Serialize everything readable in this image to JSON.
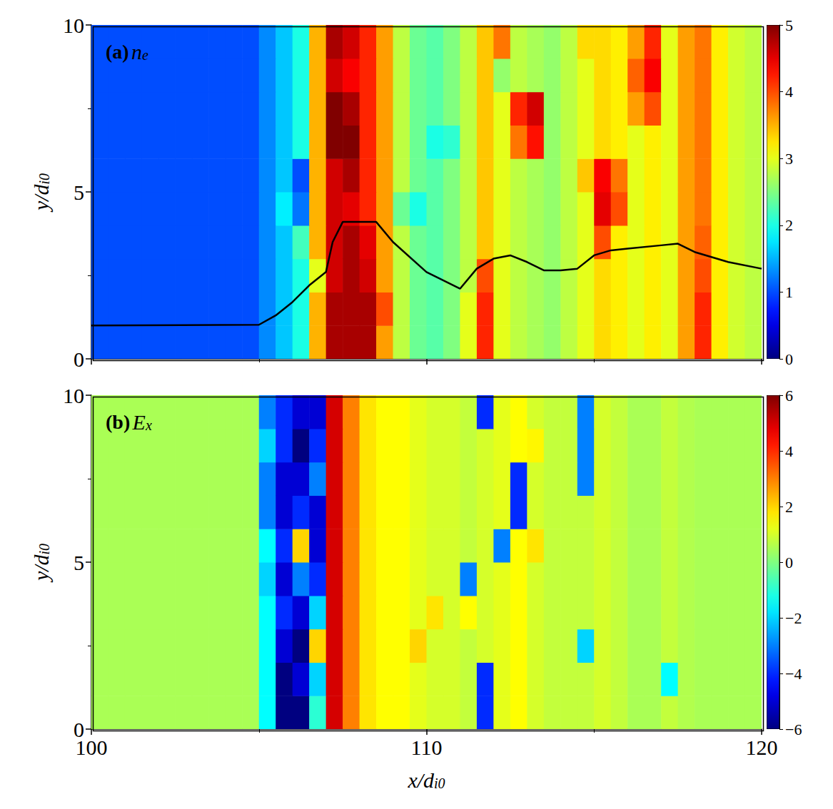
{
  "chart_data": [
    {
      "type": "heatmap",
      "panel": "(a)",
      "title": "ne",
      "ylabel": "y/di0",
      "xlim": [
        100,
        120
      ],
      "ylim": [
        0,
        10
      ],
      "xticks": [
        100,
        110,
        120
      ],
      "yticks": [
        0,
        5,
        10
      ],
      "tick_labels": "y",
      "cells": {
        "x_edges": [
          100,
          100.5,
          101,
          101.5,
          102,
          102.5,
          103,
          103.5,
          104,
          104.5,
          105,
          105.5,
          106,
          106.5,
          107,
          107.5,
          108,
          108.5,
          109,
          109.5,
          110,
          110.5,
          111,
          111.5,
          112,
          112.5,
          113,
          113.5,
          114,
          114.5,
          115,
          115.5,
          116,
          116.5,
          117,
          117.5,
          118,
          118.5,
          119,
          119.5,
          120
        ],
        "y_edges": [
          0,
          1,
          2,
          3,
          4,
          5,
          6,
          7,
          8,
          9,
          10
        ],
        "values": [
          [
            1,
            1,
            1,
            1,
            1,
            1,
            1,
            1,
            1,
            1,
            1.3,
            1.6,
            2.0,
            3.5,
            4.8,
            4.8,
            4.8,
            3.6,
            2.8,
            2.4,
            2.3,
            2.5,
            3.0,
            4.2,
            3.0,
            2.8,
            2.7,
            2.6,
            2.8,
            3.0,
            3.3,
            3.2,
            3.0,
            3.2,
            3.0,
            3.6,
            4.2,
            3.2,
            2.9,
            2.8
          ],
          [
            1,
            1,
            1,
            1,
            1,
            1,
            1,
            1,
            1,
            1,
            1.3,
            1.6,
            2.0,
            3.5,
            4.8,
            4.8,
            4.8,
            4.0,
            2.8,
            2.4,
            2.3,
            2.5,
            3.0,
            4.2,
            3.0,
            2.8,
            2.7,
            2.6,
            2.8,
            3.0,
            3.3,
            3.2,
            3.0,
            3.2,
            3.0,
            3.6,
            4.2,
            3.2,
            2.9,
            2.8
          ],
          [
            1,
            1,
            1,
            1,
            1,
            1,
            1,
            1,
            1,
            1,
            1.3,
            1.6,
            2.0,
            3.0,
            4.6,
            4.8,
            4.6,
            3.6,
            2.8,
            2.4,
            2.3,
            2.5,
            2.8,
            4.0,
            3.0,
            2.8,
            2.7,
            2.6,
            2.8,
            3.0,
            3.3,
            3.2,
            3.0,
            3.2,
            3.0,
            3.6,
            4.0,
            3.2,
            2.9,
            2.8
          ],
          [
            1,
            1,
            1,
            1,
            1,
            1,
            1,
            1,
            1,
            1,
            1.3,
            1.6,
            2.2,
            3.5,
            4.6,
            4.8,
            4.5,
            3.6,
            2.8,
            2.4,
            2.3,
            2.5,
            2.8,
            3.4,
            3.0,
            2.8,
            2.7,
            2.6,
            2.8,
            3.0,
            4.0,
            3.2,
            3.0,
            3.2,
            3.0,
            3.6,
            3.9,
            3.2,
            2.9,
            2.8
          ],
          [
            1,
            1,
            1,
            1,
            1,
            1,
            1,
            1,
            1,
            1,
            1.3,
            1.8,
            1.2,
            3.5,
            4.6,
            4.5,
            4.2,
            3.6,
            2.4,
            2.0,
            2.3,
            2.5,
            2.8,
            3.4,
            3.0,
            2.8,
            2.7,
            2.6,
            2.8,
            3.0,
            4.5,
            4.0,
            3.0,
            3.2,
            3.0,
            3.6,
            3.8,
            3.2,
            2.9,
            2.8
          ],
          [
            1,
            1,
            1,
            1,
            1,
            1,
            1,
            1,
            1,
            1,
            1.3,
            1.6,
            1.0,
            3.5,
            4.6,
            4.8,
            4.2,
            3.6,
            2.8,
            2.4,
            2.3,
            2.5,
            2.8,
            3.4,
            3.0,
            2.8,
            2.7,
            2.6,
            2.8,
            3.4,
            4.4,
            3.8,
            3.0,
            3.2,
            3.0,
            3.6,
            3.8,
            3.2,
            2.9,
            2.8
          ],
          [
            1,
            1,
            1,
            1,
            1,
            1,
            1,
            1,
            1,
            1,
            1.3,
            1.6,
            2.0,
            3.5,
            5.0,
            5.0,
            4.2,
            3.6,
            2.8,
            2.4,
            2.0,
            2.1,
            2.8,
            3.4,
            3.0,
            3.8,
            4.3,
            2.6,
            2.8,
            3.0,
            3.3,
            3.2,
            3.0,
            3.2,
            3.0,
            3.6,
            3.8,
            3.2,
            2.9,
            2.8
          ],
          [
            1,
            1,
            1,
            1,
            1,
            1,
            1,
            1,
            1,
            1,
            1.3,
            1.6,
            2.0,
            3.5,
            5.0,
            4.8,
            4.2,
            3.6,
            2.8,
            2.4,
            2.3,
            2.5,
            2.8,
            3.4,
            3.0,
            4.2,
            4.6,
            2.6,
            2.8,
            3.0,
            3.3,
            3.2,
            3.6,
            4.0,
            3.0,
            3.6,
            3.8,
            3.2,
            2.9,
            2.8
          ],
          [
            1,
            1,
            1,
            1,
            1,
            1,
            1,
            1,
            1,
            1,
            1.3,
            1.6,
            2.0,
            3.5,
            4.6,
            4.4,
            4.2,
            3.6,
            2.8,
            2.4,
            2.3,
            2.5,
            2.8,
            3.4,
            2.6,
            2.8,
            2.7,
            2.6,
            2.8,
            3.0,
            3.3,
            3.2,
            3.9,
            4.4,
            3.0,
            3.6,
            3.8,
            3.2,
            2.9,
            2.8
          ],
          [
            1,
            1,
            1,
            1,
            1,
            1,
            1,
            1,
            1,
            1,
            1.3,
            1.6,
            2.0,
            3.5,
            4.8,
            4.6,
            4.2,
            3.6,
            2.8,
            2.4,
            2.3,
            2.5,
            2.8,
            3.4,
            3.8,
            2.8,
            2.7,
            2.6,
            2.8,
            3.3,
            3.3,
            3.2,
            3.6,
            4.2,
            3.0,
            3.6,
            3.8,
            3.2,
            2.9,
            2.8
          ]
        ]
      },
      "colorbar": {
        "range": [
          0,
          5
        ],
        "ticks": [
          0,
          1,
          2,
          3,
          4,
          5
        ]
      },
      "series": [
        {
          "type": "line",
          "color": "#000000",
          "x": [
            100,
            105,
            105.5,
            106,
            106.5,
            107,
            107.2,
            107.5,
            108,
            108.5,
            109,
            110,
            111,
            111.5,
            112,
            112.5,
            113,
            113.5,
            114,
            114.5,
            115,
            115.5,
            116,
            117,
            117.5,
            118,
            119,
            120
          ],
          "values": [
            1,
            1.02,
            1.3,
            1.7,
            2.2,
            2.6,
            3.5,
            4.1,
            4.1,
            4.1,
            3.5,
            2.6,
            2.1,
            2.7,
            3.0,
            3.1,
            2.9,
            2.65,
            2.65,
            2.7,
            3.1,
            3.25,
            3.3,
            3.4,
            3.45,
            3.2,
            2.9,
            2.7
          ]
        }
      ]
    },
    {
      "type": "heatmap",
      "panel": "(b)",
      "title": "Ex",
      "xlabel": "x/di0",
      "ylabel": "y/di0",
      "xlim": [
        100,
        120
      ],
      "ylim": [
        0,
        10
      ],
      "xticks": [
        100,
        110,
        120
      ],
      "yticks": [
        0,
        5,
        10
      ],
      "cells": {
        "x_edges": [
          100,
          100.5,
          101,
          101.5,
          102,
          102.5,
          103,
          103.5,
          104,
          104.5,
          105,
          105.5,
          106,
          106.5,
          107,
          107.5,
          108,
          108.5,
          109,
          109.5,
          110,
          110.5,
          111,
          111.5,
          112,
          112.5,
          113,
          113.5,
          114,
          114.5,
          115,
          115.5,
          116,
          116.5,
          117,
          117.5,
          118,
          118.5,
          119,
          119.5,
          120
        ],
        "y_edges": [
          0,
          1,
          2,
          3,
          4,
          5,
          6,
          7,
          8,
          9,
          10
        ],
        "values": [
          [
            0.5,
            0.5,
            0.5,
            0.5,
            0.5,
            0.5,
            0.5,
            0.5,
            0.5,
            0.5,
            -1.5,
            -6,
            -6,
            -1,
            5,
            3,
            1.8,
            1.5,
            1.5,
            1.2,
            1,
            1,
            0.8,
            -4,
            1.2,
            1.5,
            1,
            0.8,
            0.8,
            0.8,
            1,
            0.8,
            0.5,
            0.5,
            0.8,
            0.6,
            0.5,
            0.5,
            0.5,
            0.5
          ],
          [
            0.5,
            0.5,
            0.5,
            0.5,
            0.5,
            0.5,
            0.5,
            0.5,
            0.5,
            0.5,
            -1.5,
            -6,
            -5,
            -2,
            5,
            3,
            1.8,
            1.5,
            1.5,
            1.2,
            1,
            1,
            0.8,
            -4,
            1.2,
            1.5,
            1,
            0.8,
            0.8,
            0.8,
            1,
            0.8,
            0.5,
            0.5,
            -1.5,
            0.6,
            0.5,
            0.5,
            0.5,
            0.5
          ],
          [
            0.5,
            0.5,
            0.5,
            0.5,
            0.5,
            0.5,
            0.5,
            0.5,
            0.5,
            0.5,
            -1.5,
            -5,
            -6,
            2,
            5,
            3,
            1.8,
            1.5,
            1.5,
            2,
            1,
            1,
            0.8,
            1,
            1.2,
            1.5,
            1,
            0.8,
            0.8,
            -2,
            1,
            0.8,
            0.5,
            0.5,
            0.8,
            0.6,
            0.5,
            0.5,
            0.5,
            0.5
          ],
          [
            0.5,
            0.5,
            0.5,
            0.5,
            0.5,
            0.5,
            0.5,
            0.5,
            0.5,
            0.5,
            -1.5,
            -4,
            -5,
            -2,
            5,
            3,
            1.8,
            1.5,
            1.5,
            1.2,
            1.8,
            1,
            1.5,
            1,
            1.2,
            1.5,
            1,
            0.8,
            0.8,
            0.8,
            1,
            0.8,
            0.5,
            0.5,
            0.8,
            0.6,
            0.5,
            0.5,
            0.5,
            0.5
          ],
          [
            0.5,
            0.5,
            0.5,
            0.5,
            0.5,
            0.5,
            0.5,
            0.5,
            0.5,
            0.5,
            -2,
            -5,
            -3,
            -4,
            5,
            3,
            1.8,
            1.5,
            1.5,
            1.2,
            1,
            1,
            -3,
            1,
            1.2,
            1.5,
            1,
            0.8,
            0.8,
            0.8,
            1,
            0.8,
            0.5,
            0.5,
            0.8,
            0.6,
            0.5,
            0.5,
            0.5,
            0.5
          ],
          [
            0.5,
            0.5,
            0.5,
            0.5,
            0.5,
            0.5,
            0.5,
            0.5,
            0.5,
            0.5,
            -1.5,
            -4,
            2,
            -5,
            5,
            3,
            1.8,
            1.5,
            1.5,
            1.2,
            1,
            1,
            0.8,
            1,
            -3,
            1.5,
            1.8,
            0.8,
            0.8,
            0.8,
            1,
            0.8,
            0.5,
            0.5,
            0.8,
            0.6,
            0.5,
            0.5,
            0.5,
            0.5
          ],
          [
            0.5,
            0.5,
            0.5,
            0.5,
            0.5,
            0.5,
            0.5,
            0.5,
            0.5,
            0.5,
            -3,
            -5,
            -4,
            -5,
            5,
            3,
            1.8,
            1.5,
            1.5,
            1.2,
            1,
            1,
            0.8,
            1,
            1.2,
            -4,
            1,
            0.8,
            0.8,
            0.8,
            1,
            0.8,
            0.5,
            0.5,
            0.8,
            0.6,
            0.5,
            0.5,
            0.5,
            0.5
          ],
          [
            0.5,
            0.5,
            0.5,
            0.5,
            0.5,
            0.5,
            0.5,
            0.5,
            0.5,
            0.5,
            -3,
            -5,
            -5,
            -3,
            5,
            3,
            1.8,
            1.5,
            1.5,
            1.2,
            1,
            1,
            0.8,
            1,
            1.2,
            -4,
            1,
            0.8,
            0.8,
            -3,
            1,
            0.8,
            0.5,
            0.5,
            0.8,
            0.6,
            0.5,
            0.5,
            0.5,
            0.5
          ],
          [
            0.5,
            0.5,
            0.5,
            0.5,
            0.5,
            0.5,
            0.5,
            0.5,
            0.5,
            0.5,
            -2,
            -4,
            -6,
            -4,
            5,
            3,
            1.8,
            1.5,
            1.5,
            1.2,
            1,
            1,
            0.8,
            1,
            1.2,
            1.5,
            1.6,
            0.8,
            0.8,
            -3,
            1,
            0.8,
            0.5,
            0.5,
            0.8,
            0.6,
            0.5,
            0.5,
            0.5,
            0.5
          ],
          [
            0.5,
            0.5,
            0.5,
            0.5,
            0.5,
            0.5,
            0.5,
            0.5,
            0.5,
            0.5,
            -3,
            -4,
            -5,
            -5,
            5,
            3,
            1.8,
            1.5,
            1.5,
            1.2,
            1,
            1,
            0.8,
            -4,
            1.2,
            1.5,
            1,
            0.8,
            0.8,
            -3,
            1,
            0.8,
            0.5,
            0.5,
            0.8,
            0.6,
            0.5,
            0.5,
            0.5,
            0.5
          ]
        ]
      },
      "colorbar": {
        "range": [
          -6,
          6
        ],
        "ticks": [
          {
            "value": -6,
            "label": "−6"
          },
          {
            "value": -4,
            "label": "−4"
          },
          {
            "value": -2,
            "label": "−2"
          },
          0,
          2,
          4,
          6
        ]
      }
    }
  ]
}
